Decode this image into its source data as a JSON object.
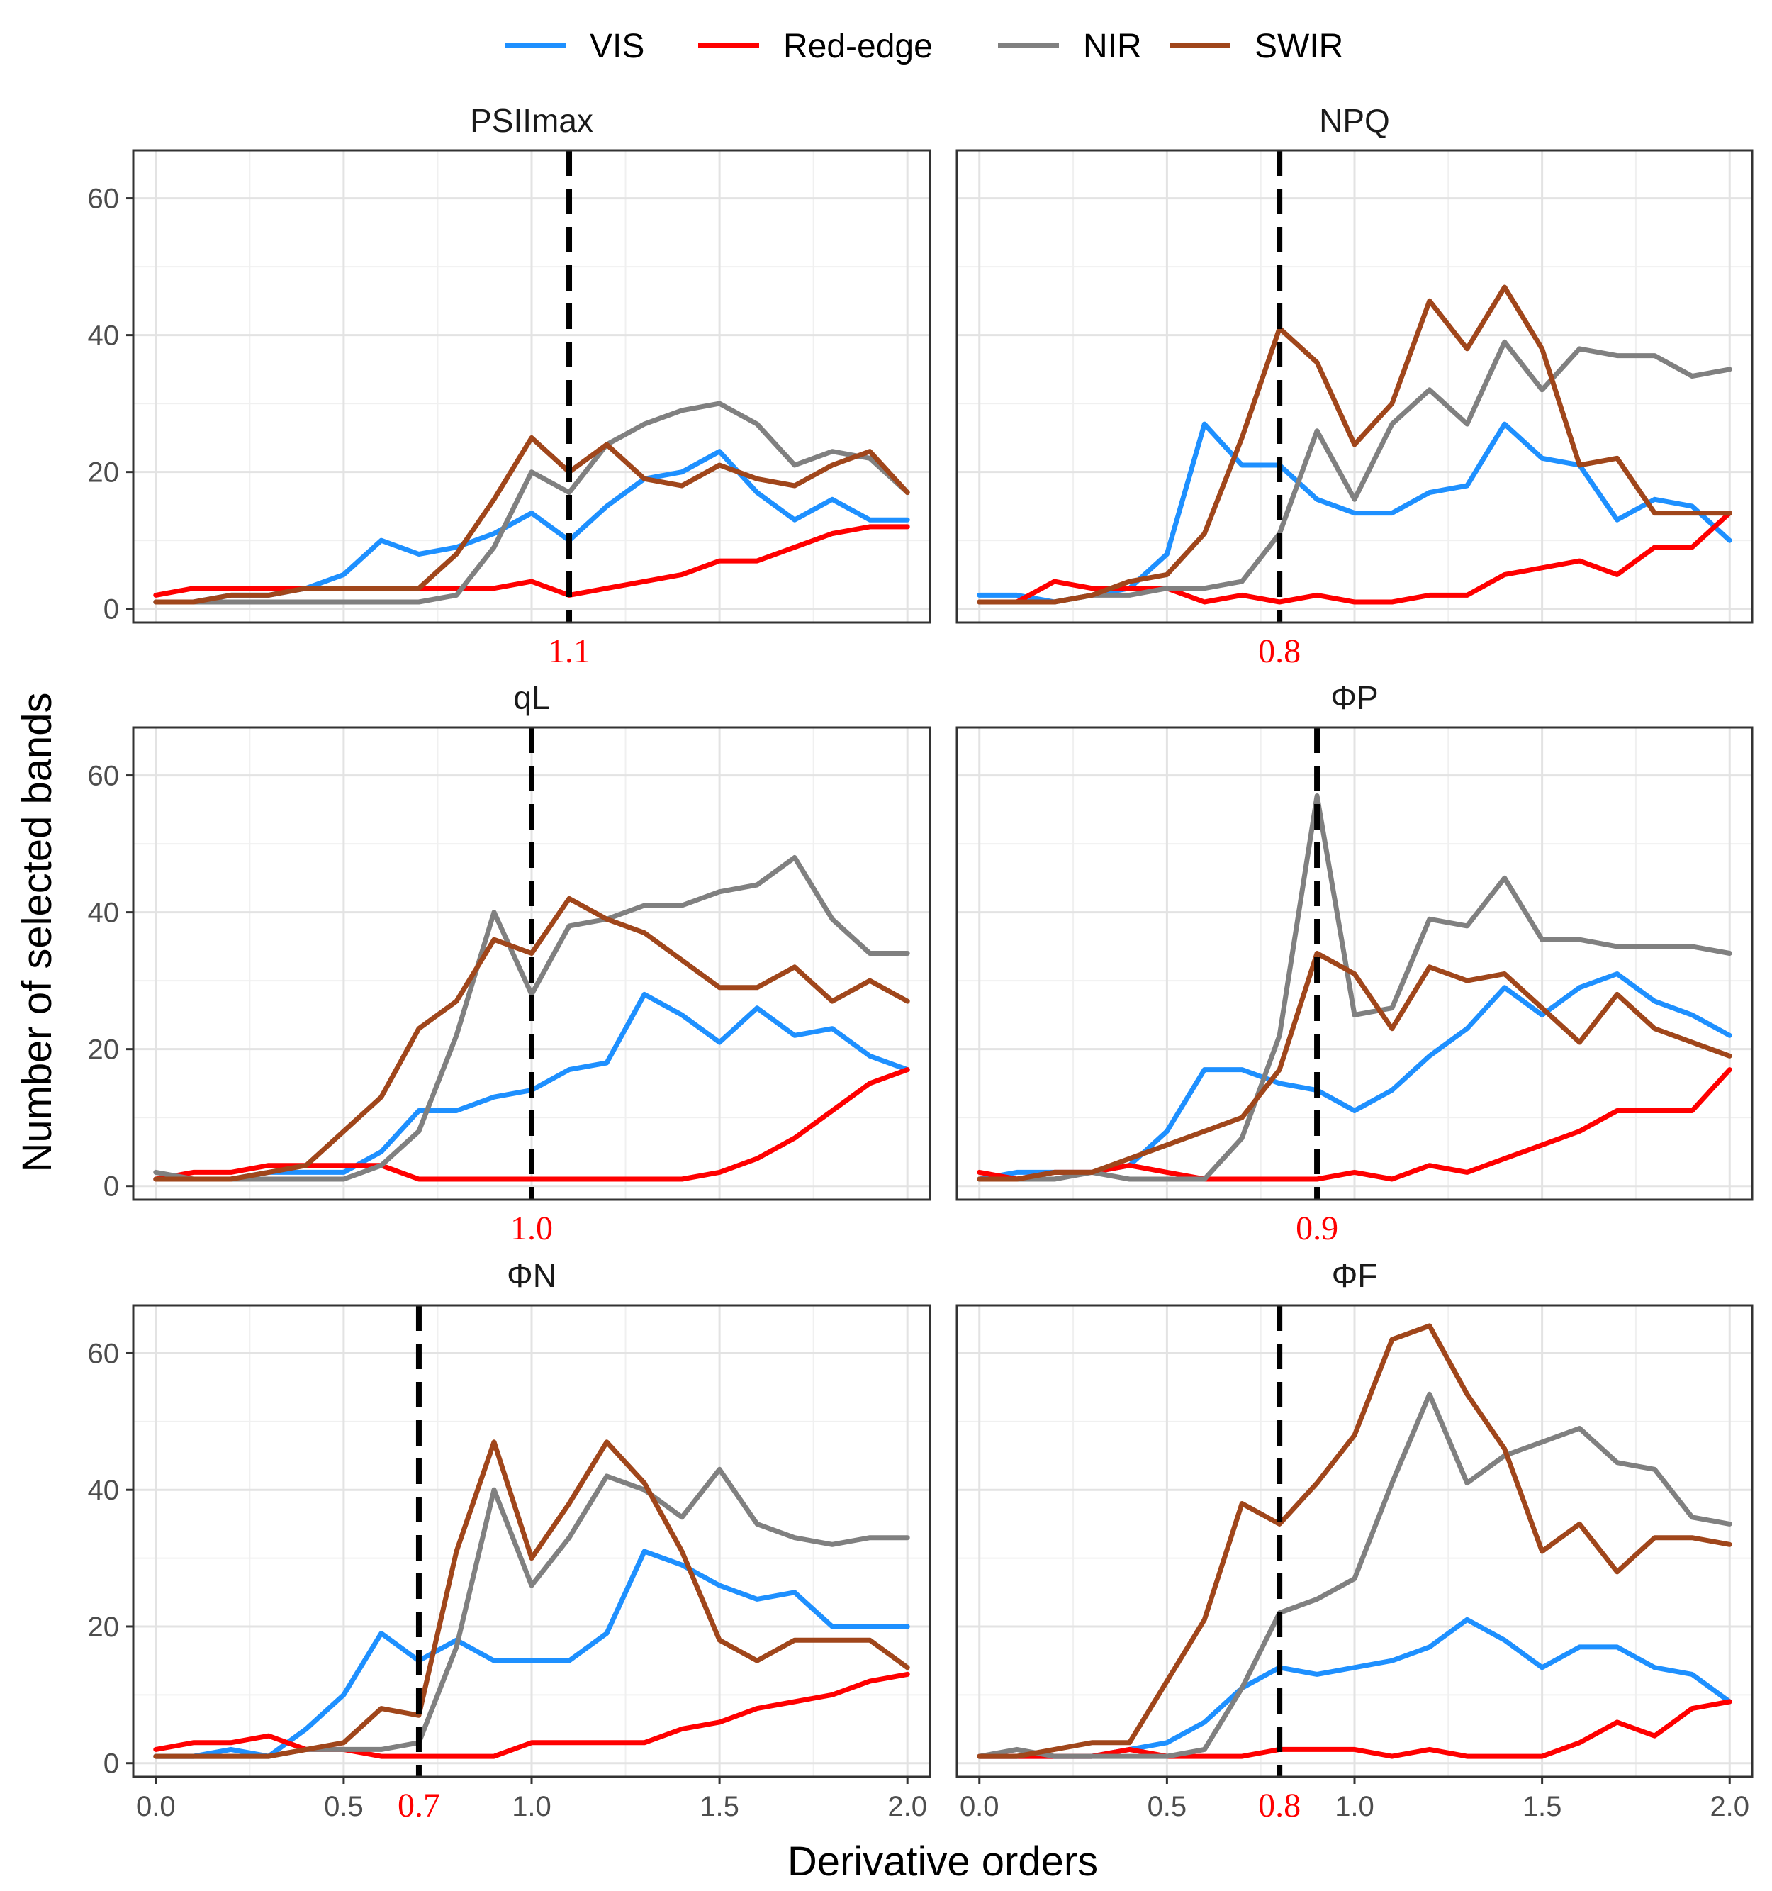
{
  "chart_data": {
    "type": "line",
    "xlabel": "Derivative orders",
    "ylabel": "Number of selected bands",
    "xlim": [
      -0.06,
      2.06
    ],
    "ylim": [
      -2,
      67
    ],
    "x_ticks": [
      "0.0",
      "0.5",
      "1.0",
      "1.5",
      "2.0"
    ],
    "y_ticks": [
      "0",
      "20",
      "40",
      "60"
    ],
    "grid": true,
    "legend_position": "top",
    "legend": [
      {
        "name": "VIS",
        "color": "#1E90FF"
      },
      {
        "name": "Red-edge",
        "color": "#FF0000"
      },
      {
        "name": "NIR",
        "color": "#808080"
      },
      {
        "name": "SWIR",
        "color": "#A0461B"
      }
    ],
    "marker_color": "#FF0000",
    "x": [
      0.0,
      0.1,
      0.2,
      0.3,
      0.4,
      0.5,
      0.6,
      0.7,
      0.8,
      0.9,
      1.0,
      1.1,
      1.2,
      1.3,
      1.4,
      1.5,
      1.6,
      1.7,
      1.8,
      1.9,
      2.0
    ],
    "panels": [
      {
        "title": "PSIImax",
        "marker": 1.1,
        "marker_label": "1.1",
        "series": [
          {
            "name": "VIS",
            "values": [
              1,
              1,
              2,
              2,
              3,
              5,
              10,
              8,
              9,
              11,
              14,
              10,
              15,
              19,
              20,
              23,
              17,
              13,
              16,
              13,
              13
            ]
          },
          {
            "name": "Red-edge",
            "values": [
              2,
              3,
              3,
              3,
              3,
              3,
              3,
              3,
              3,
              3,
              4,
              2,
              3,
              4,
              5,
              7,
              7,
              9,
              11,
              12,
              12
            ]
          },
          {
            "name": "NIR",
            "values": [
              1,
              1,
              1,
              1,
              1,
              1,
              1,
              1,
              2,
              9,
              20,
              17,
              24,
              27,
              29,
              30,
              27,
              21,
              23,
              22,
              17
            ]
          },
          {
            "name": "SWIR",
            "values": [
              1,
              1,
              2,
              2,
              3,
              3,
              3,
              3,
              8,
              16,
              25,
              20,
              24,
              19,
              18,
              21,
              19,
              18,
              21,
              23,
              17
            ]
          }
        ]
      },
      {
        "title": "NPQ",
        "marker": 0.8,
        "marker_label": "0.8",
        "series": [
          {
            "name": "VIS",
            "values": [
              2,
              2,
              1,
              2,
              3,
              8,
              27,
              21,
              21,
              16,
              14,
              14,
              17,
              18,
              27,
              22,
              21,
              13,
              16,
              15,
              10
            ]
          },
          {
            "name": "Red-edge",
            "values": [
              1,
              1,
              4,
              3,
              3,
              3,
              1,
              2,
              1,
              2,
              1,
              1,
              2,
              2,
              5,
              6,
              7,
              5,
              9,
              9,
              14
            ]
          },
          {
            "name": "NIR",
            "values": [
              1,
              1,
              1,
              2,
              2,
              3,
              3,
              4,
              11,
              26,
              16,
              27,
              32,
              27,
              39,
              32,
              38,
              37,
              37,
              34,
              35
            ]
          },
          {
            "name": "SWIR",
            "values": [
              1,
              1,
              1,
              2,
              4,
              5,
              11,
              25,
              41,
              36,
              24,
              30,
              45,
              38,
              47,
              38,
              21,
              22,
              14,
              14,
              14
            ]
          }
        ]
      },
      {
        "title": "qL",
        "marker": 1.0,
        "marker_label": "1.0",
        "series": [
          {
            "name": "VIS",
            "values": [
              1,
              1,
              1,
              2,
              2,
              2,
              5,
              11,
              11,
              13,
              14,
              17,
              18,
              28,
              25,
              21,
              26,
              22,
              23,
              19,
              17
            ]
          },
          {
            "name": "Red-edge",
            "values": [
              1,
              2,
              2,
              3,
              3,
              3,
              3,
              1,
              1,
              1,
              1,
              1,
              1,
              1,
              1,
              2,
              4,
              7,
              11,
              15,
              17
            ]
          },
          {
            "name": "NIR",
            "values": [
              2,
              1,
              1,
              1,
              1,
              1,
              3,
              8,
              22,
              40,
              28,
              38,
              39,
              41,
              41,
              43,
              44,
              48,
              39,
              34,
              34
            ]
          },
          {
            "name": "SWIR",
            "values": [
              1,
              1,
              1,
              2,
              3,
              8,
              13,
              23,
              27,
              36,
              34,
              42,
              39,
              37,
              33,
              29,
              29,
              32,
              27,
              30,
              27
            ]
          }
        ]
      },
      {
        "title": "ΦP",
        "marker": 0.9,
        "marker_label": "0.9",
        "series": [
          {
            "name": "VIS",
            "values": [
              1,
              2,
              2,
              2,
              3,
              8,
              17,
              17,
              15,
              14,
              11,
              14,
              19,
              23,
              29,
              25,
              29,
              31,
              27,
              25,
              22
            ]
          },
          {
            "name": "Red-edge",
            "values": [
              2,
              1,
              2,
              2,
              3,
              2,
              1,
              1,
              1,
              1,
              2,
              1,
              3,
              2,
              4,
              6,
              8,
              11,
              11,
              11,
              17
            ]
          },
          {
            "name": "NIR",
            "values": [
              1,
              1,
              1,
              2,
              1,
              1,
              1,
              7,
              22,
              57,
              25,
              26,
              39,
              38,
              45,
              36,
              36,
              35,
              35,
              35,
              34
            ]
          },
          {
            "name": "SWIR",
            "values": [
              1,
              1,
              2,
              2,
              4,
              6,
              8,
              10,
              17,
              34,
              31,
              23,
              32,
              30,
              31,
              26,
              21,
              28,
              23,
              21,
              19
            ]
          }
        ]
      },
      {
        "title": "ΦN",
        "marker": 0.7,
        "marker_label": "0.7",
        "series": [
          {
            "name": "VIS",
            "values": [
              1,
              1,
              2,
              1,
              5,
              10,
              19,
              15,
              18,
              15,
              15,
              15,
              19,
              31,
              29,
              26,
              24,
              25,
              20,
              20,
              20
            ]
          },
          {
            "name": "Red-edge",
            "values": [
              2,
              3,
              3,
              4,
              2,
              2,
              1,
              1,
              1,
              1,
              3,
              3,
              3,
              3,
              5,
              6,
              8,
              9,
              10,
              12,
              13
            ]
          },
          {
            "name": "NIR",
            "values": [
              1,
              1,
              1,
              1,
              2,
              2,
              2,
              3,
              17,
              40,
              26,
              33,
              42,
              40,
              36,
              43,
              35,
              33,
              32,
              33,
              33
            ]
          },
          {
            "name": "SWIR",
            "values": [
              1,
              1,
              1,
              1,
              2,
              3,
              8,
              7,
              31,
              47,
              30,
              38,
              47,
              41,
              31,
              18,
              15,
              18,
              18,
              18,
              14
            ]
          }
        ]
      },
      {
        "title": "ΦF",
        "marker": 0.8,
        "marker_label": "0.8",
        "series": [
          {
            "name": "VIS",
            "values": [
              1,
              1,
              1,
              1,
              2,
              3,
              6,
              11,
              14,
              13,
              14,
              15,
              17,
              21,
              18,
              14,
              17,
              17,
              14,
              13,
              9
            ]
          },
          {
            "name": "Red-edge",
            "values": [
              1,
              1,
              1,
              1,
              2,
              1,
              1,
              1,
              2,
              2,
              2,
              1,
              2,
              1,
              1,
              1,
              3,
              6,
              4,
              8,
              9
            ]
          },
          {
            "name": "NIR",
            "values": [
              1,
              2,
              1,
              1,
              1,
              1,
              2,
              11,
              22,
              24,
              27,
              41,
              54,
              41,
              45,
              47,
              49,
              44,
              43,
              36,
              35
            ]
          },
          {
            "name": "SWIR",
            "values": [
              1,
              1,
              2,
              3,
              3,
              12,
              21,
              38,
              35,
              41,
              48,
              62,
              64,
              54,
              46,
              31,
              35,
              28,
              33,
              33,
              32
            ]
          }
        ]
      }
    ]
  }
}
